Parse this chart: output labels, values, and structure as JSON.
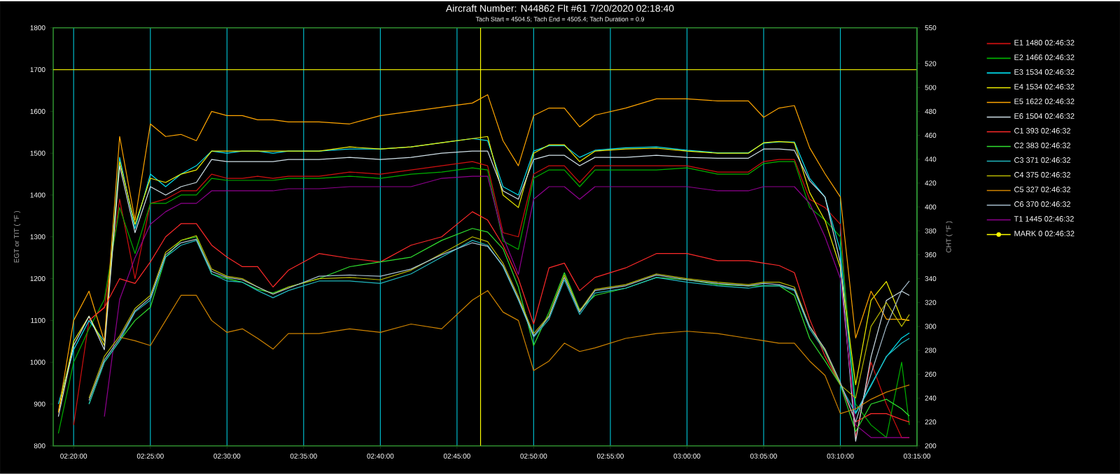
{
  "chart_data": {
    "type": "line",
    "title": "Aircraft Number: N44862 Flt #61 7/20/2020 02:18:40",
    "subtitle": "Tach Start = 4504.5; Tach End = 4505.4; Tach Duration = 0.9",
    "ylabel": "EGT or TIT ( °F )",
    "y2label": "CHT ( °F )",
    "x": [
      2.3167,
      2.3333,
      2.35,
      2.3667,
      2.3833,
      2.4,
      2.4167,
      2.4333,
      2.45,
      2.4667,
      2.4833,
      2.5,
      2.5167,
      2.5333,
      2.55,
      2.5667,
      2.6,
      2.6333,
      2.6667,
      2.7,
      2.7333,
      2.7667,
      2.7833,
      2.8,
      2.8167,
      2.8333,
      2.85,
      2.8667,
      2.8833,
      2.9,
      2.9333,
      2.9667,
      3.0,
      3.0333,
      3.0667,
      3.0833,
      3.1,
      3.1167,
      3.1333,
      3.15,
      3.1667,
      3.1833,
      3.2,
      3.2167,
      3.2333,
      3.2417
    ],
    "series": [
      {
        "name": "E1 1480 02:46:32",
        "color": "#d01010",
        "values": [
          null,
          850,
          1100,
          1130,
          1390,
          1200,
          1380,
          1390,
          1410,
          1410,
          1450,
          1440,
          1440,
          1445,
          1440,
          1445,
          1445,
          1455,
          1450,
          1460,
          1470,
          1480,
          1470,
          1310,
          1300,
          1450,
          1470,
          1470,
          1430,
          1470,
          1470,
          1470,
          1470,
          1455,
          1455,
          1480,
          1485,
          1485,
          1390,
          1370,
          1330,
          820,
          1000,
          900,
          820,
          820
        ]
      },
      {
        "name": "E2 1466 02:46:32",
        "color": "#00b000",
        "values": [
          830,
          1000,
          1080,
          1150,
          1370,
          1260,
          1380,
          1380,
          1400,
          1400,
          1440,
          1435,
          1435,
          1435,
          1435,
          1440,
          1440,
          1445,
          1440,
          1450,
          1455,
          1465,
          1460,
          1290,
          1270,
          1440,
          1460,
          1460,
          1420,
          1460,
          1460,
          1460,
          1465,
          1450,
          1450,
          1475,
          1480,
          1480,
          1370,
          1340,
          1300,
          900,
          850,
          820,
          1000,
          850
        ]
      },
      {
        "name": "E3 1534 02:46:32",
        "color": "#00e0f0",
        "values": [
          900,
          1030,
          1100,
          1050,
          1490,
          1320,
          1450,
          1420,
          1450,
          1470,
          1505,
          1500,
          1505,
          1505,
          1500,
          1505,
          1505,
          1510,
          1510,
          1515,
          1525,
          1535,
          1530,
          1420,
          1400,
          1505,
          1518,
          1518,
          1490,
          1507,
          1513,
          1515,
          1507,
          1501,
          1501,
          1524,
          1527,
          1527,
          1440,
          1395,
          1266,
          879,
          946,
          1013,
          1058,
          1070
        ]
      },
      {
        "name": "E4 1534 02:46:32",
        "color": "#f0f000",
        "values": [
          880,
          1050,
          1110,
          1040,
          1480,
          1330,
          1440,
          1430,
          1450,
          1460,
          1505,
          1505,
          1505,
          1505,
          1505,
          1505,
          1505,
          1515,
          1510,
          1515,
          1525,
          1535,
          1540,
          1400,
          1370,
          1500,
          1520,
          1520,
          1480,
          1505,
          1510,
          1512,
          1505,
          1500,
          1500,
          1525,
          1528,
          1525,
          1406,
          1339,
          1226,
          946,
          1148,
          1193,
          1103,
          1100
        ]
      },
      {
        "name": "E5 1622 02:46:32",
        "color": "#ffa500",
        "values": [
          880,
          1100,
          1170,
          1050,
          1540,
          1340,
          1570,
          1540,
          1545,
          1530,
          1600,
          1590,
          1590,
          1580,
          1580,
          1575,
          1575,
          1570,
          1590,
          1600,
          1610,
          1620,
          1640,
          1530,
          1470,
          1590,
          1608,
          1608,
          1563,
          1591,
          1608,
          1630,
          1630,
          1625,
          1625,
          1586,
          1608,
          1614,
          1513,
          1451,
          1395,
          1058,
          1170,
          1103,
          1103,
          1100
        ]
      },
      {
        "name": "E6 1504 02:46:32",
        "color": "#d0e0e8",
        "values": [
          870,
          1040,
          1110,
          1030,
          1470,
          1310,
          1420,
          1400,
          1420,
          1430,
          1485,
          1480,
          1480,
          1480,
          1480,
          1485,
          1485,
          1490,
          1485,
          1490,
          1500,
          1505,
          1505,
          1410,
          1390,
          1485,
          1495,
          1495,
          1470,
          1490,
          1490,
          1495,
          1490,
          1488,
          1488,
          1510,
          1510,
          1507,
          1434,
          1395,
          1238,
          811,
          1013,
          1148,
          1170,
          1160
        ]
      },
      {
        "name": "C1 393 02:46:32",
        "color": "#ff2a2a",
        "axis": "y2",
        "values": [
          null,
          null,
          305,
          316,
          340,
          336,
          354,
          375,
          386,
          386,
          368,
          358,
          350,
          350,
          333,
          347,
          361,
          357,
          354,
          368,
          375,
          396,
          389,
          368,
          340,
          302,
          349,
          353,
          330,
          341,
          349,
          361,
          361,
          355,
          355,
          353,
          351,
          345,
          306,
          275,
          251,
          220,
          227,
          227,
          222,
          220
        ]
      },
      {
        "name": "C2 383 02:46:32",
        "color": "#30e030",
        "axis": "y2",
        "values": [
          null,
          null,
          235,
          270,
          288,
          305,
          316,
          358,
          372,
          375,
          344,
          340,
          337,
          331,
          328,
          333,
          340,
          350,
          354,
          358,
          372,
          382,
          379,
          365,
          333,
          284,
          312,
          345,
          314,
          326,
          332,
          341,
          339,
          335,
          334,
          334,
          334,
          326,
          290,
          271,
          251,
          212,
          235,
          239,
          231,
          225
        ]
      },
      {
        "name": "C3 371 02:46:32",
        "color": "#20b8c0",
        "axis": "y2",
        "values": [
          null,
          null,
          235,
          270,
          288,
          312,
          322,
          358,
          368,
          372,
          344,
          338,
          337,
          330,
          324,
          330,
          338,
          338,
          336,
          344,
          358,
          372,
          368,
          350,
          322,
          291,
          306,
          339,
          310,
          328,
          332,
          341,
          337,
          334,
          332,
          334,
          334,
          330,
          298,
          279,
          251,
          227,
          250,
          275,
          286,
          290
        ]
      },
      {
        "name": "C4 375 02:46:32",
        "color": "#b8b800",
        "axis": "y2",
        "values": [
          null,
          null,
          240,
          275,
          292,
          315,
          326,
          362,
          372,
          376,
          348,
          342,
          340,
          333,
          327,
          333,
          340,
          341,
          339,
          347,
          361,
          375,
          371,
          353,
          325,
          294,
          309,
          343,
          313,
          331,
          335,
          344,
          340,
          337,
          335,
          337,
          337,
          333,
          300,
          280,
          251,
          240,
          300,
          320,
          300,
          310
        ]
      },
      {
        "name": "C5 327 02:46:32",
        "color": "#d08400",
        "axis": "y2",
        "values": [
          null,
          null,
          null,
          null,
          291,
          288,
          284,
          305,
          326,
          326,
          305,
          295,
          298,
          290,
          281,
          294,
          294,
          298,
          295,
          302,
          298,
          322,
          330,
          312,
          305,
          263,
          271,
          286,
          279,
          282,
          290,
          294,
          296,
          294,
          290,
          288,
          286,
          286,
          271,
          259,
          227,
          231,
          239,
          245,
          249,
          251
        ]
      },
      {
        "name": "C6 370 02:46:32",
        "color": "#a8c0d0",
        "axis": "y2",
        "values": [
          null,
          null,
          238,
          272,
          290,
          313,
          324,
          360,
          370,
          373,
          346,
          341,
          339,
          333,
          327,
          332,
          342,
          343,
          342,
          348,
          360,
          370,
          367,
          351,
          323,
          292,
          308,
          341,
          312,
          330,
          334,
          343,
          339,
          336,
          334,
          336,
          335,
          331,
          300,
          281,
          253,
          220,
          260,
          300,
          330,
          338
        ]
      },
      {
        "name": "T1 1445 02:46:32",
        "color": "#900090",
        "values": [
          null,
          null,
          null,
          870,
          1150,
          1250,
          1330,
          1360,
          1380,
          1380,
          1410,
          1410,
          1410,
          1410,
          1410,
          1415,
          1415,
          1420,
          1420,
          1420,
          1440,
          1445,
          1445,
          1300,
          1210,
          1390,
          1420,
          1420,
          1390,
          1420,
          1420,
          1420,
          1420,
          1410,
          1410,
          1420,
          1420,
          1420,
          1380,
          1300,
          1200,
          850,
          820,
          820,
          820,
          820
        ]
      }
    ],
    "xlim": [
      2.3111,
      3.25
    ],
    "xticks": [
      {
        "value": 2.3333,
        "label": "02:20:00"
      },
      {
        "value": 2.4167,
        "label": "02:25:00"
      },
      {
        "value": 2.5,
        "label": "02:30:00"
      },
      {
        "value": 2.5833,
        "label": "02:35:00"
      },
      {
        "value": 2.6667,
        "label": "02:40:00"
      },
      {
        "value": 2.75,
        "label": "02:45:00"
      },
      {
        "value": 2.8333,
        "label": "02:50:00"
      },
      {
        "value": 2.9167,
        "label": "02:55:00"
      },
      {
        "value": 3.0,
        "label": "03:00:00"
      },
      {
        "value": 3.0833,
        "label": "03:05:00"
      },
      {
        "value": 3.1667,
        "label": "03:10:00"
      },
      {
        "value": 3.25,
        "label": "03:15:00"
      }
    ],
    "ylim": [
      800,
      1800
    ],
    "yticks": [
      800,
      900,
      1000,
      1100,
      1200,
      1300,
      1400,
      1500,
      1600,
      1700,
      1800
    ],
    "y2lim": [
      200,
      550
    ],
    "y2ticks": [
      200,
      220,
      240,
      260,
      280,
      300,
      320,
      340,
      360,
      380,
      400,
      420,
      440,
      460,
      480,
      500,
      520,
      550
    ],
    "ref_lines": [
      {
        "axis": "y",
        "value": 1700,
        "color": "#e0e000"
      },
      {
        "axis": "x",
        "value": 2.7756,
        "color": "#ffff00"
      }
    ],
    "annotations": [
      "MARK 0 02:46:32"
    ],
    "grid": "x",
    "legend": "right"
  }
}
